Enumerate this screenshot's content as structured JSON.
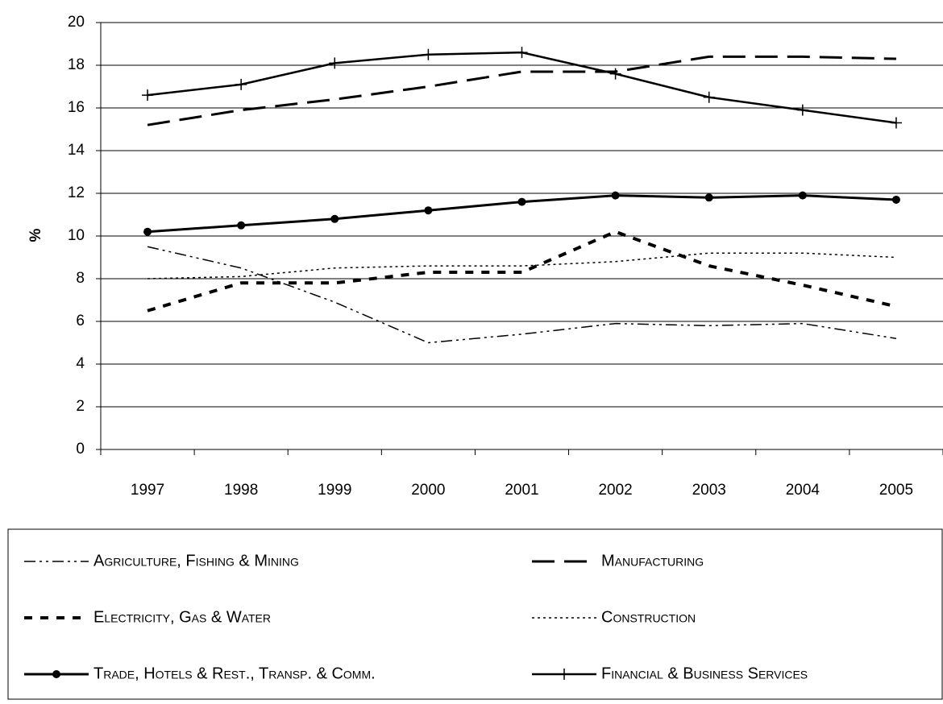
{
  "chart_data": {
    "type": "line",
    "y_label": "%",
    "categories": [
      "1997",
      "1998",
      "1999",
      "2000",
      "2001",
      "2002",
      "2003",
      "2004",
      "2005"
    ],
    "ylim": [
      0,
      20
    ],
    "yticks": [
      0,
      2,
      4,
      6,
      8,
      10,
      12,
      14,
      16,
      18,
      20
    ],
    "grid": true,
    "legend": "bottom",
    "series": [
      {
        "name": "Agriculture, Fishing & Mining",
        "color": "#000000",
        "values": [
          9.5,
          8.5,
          6.9,
          5.0,
          5.4,
          5.9,
          5.8,
          5.9,
          5.2
        ]
      },
      {
        "name": "Manufacturing",
        "color": "#000000",
        "values": [
          15.2,
          15.9,
          16.4,
          17.0,
          17.7,
          17.7,
          18.4,
          18.4,
          18.3
        ]
      },
      {
        "name": "Electricity, Gas & Water",
        "color": "#000000",
        "values": [
          6.5,
          7.8,
          7.8,
          8.3,
          8.3,
          10.2,
          8.6,
          7.7,
          6.7
        ]
      },
      {
        "name": "Construction",
        "color": "#000000",
        "values": [
          8.0,
          8.1,
          8.5,
          8.6,
          8.6,
          8.8,
          9.2,
          9.2,
          9.0
        ]
      },
      {
        "name": "Trade, Hotels & Rest., Transp. & Comm.",
        "color": "#000000",
        "values": [
          10.2,
          10.5,
          10.8,
          11.2,
          11.6,
          11.9,
          11.8,
          11.9,
          11.7
        ]
      },
      {
        "name": "Financial & Business Services",
        "color": "#000000",
        "values": [
          16.6,
          17.1,
          18.1,
          18.5,
          18.6,
          17.6,
          16.5,
          15.9,
          15.3
        ]
      }
    ]
  }
}
